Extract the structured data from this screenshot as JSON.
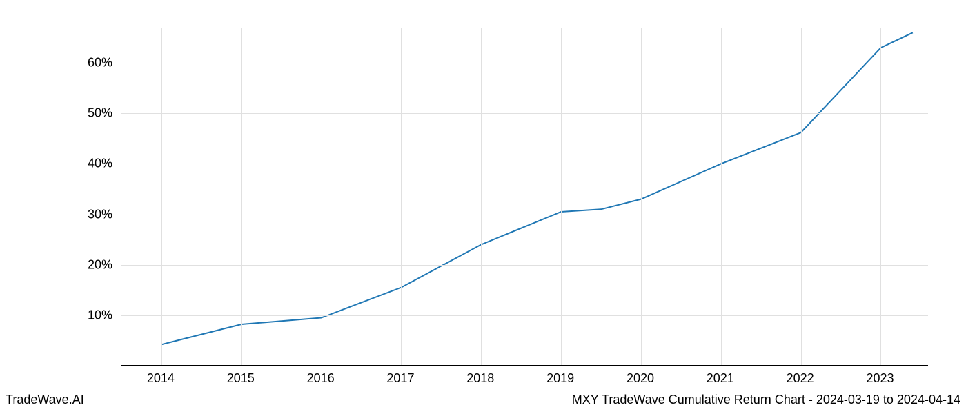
{
  "chart": {
    "type": "line",
    "background_color": "#ffffff",
    "grid_color": "#e0e0e0",
    "axis_color": "#000000",
    "line_color": "#1f77b4",
    "line_width": 2,
    "tick_fontsize": 18,
    "x": {
      "ticks": [
        2014,
        2015,
        2016,
        2017,
        2018,
        2019,
        2020,
        2021,
        2022,
        2023
      ],
      "lim": [
        2013.5,
        2023.6
      ]
    },
    "y": {
      "ticks": [
        10,
        20,
        30,
        40,
        50,
        60
      ],
      "tick_suffix": "%",
      "lim": [
        0,
        67
      ]
    },
    "series": {
      "x": [
        2014,
        2015,
        2016,
        2017,
        2018,
        2019,
        2019.5,
        2020,
        2021,
        2022,
        2023,
        2023.4
      ],
      "y": [
        4.2,
        8.2,
        9.5,
        15.5,
        24,
        30.5,
        31,
        33,
        40,
        46.2,
        63,
        66
      ]
    }
  },
  "footer": {
    "left": "TradeWave.AI",
    "right": "MXY TradeWave Cumulative Return Chart - 2024-03-19 to 2024-04-14"
  }
}
